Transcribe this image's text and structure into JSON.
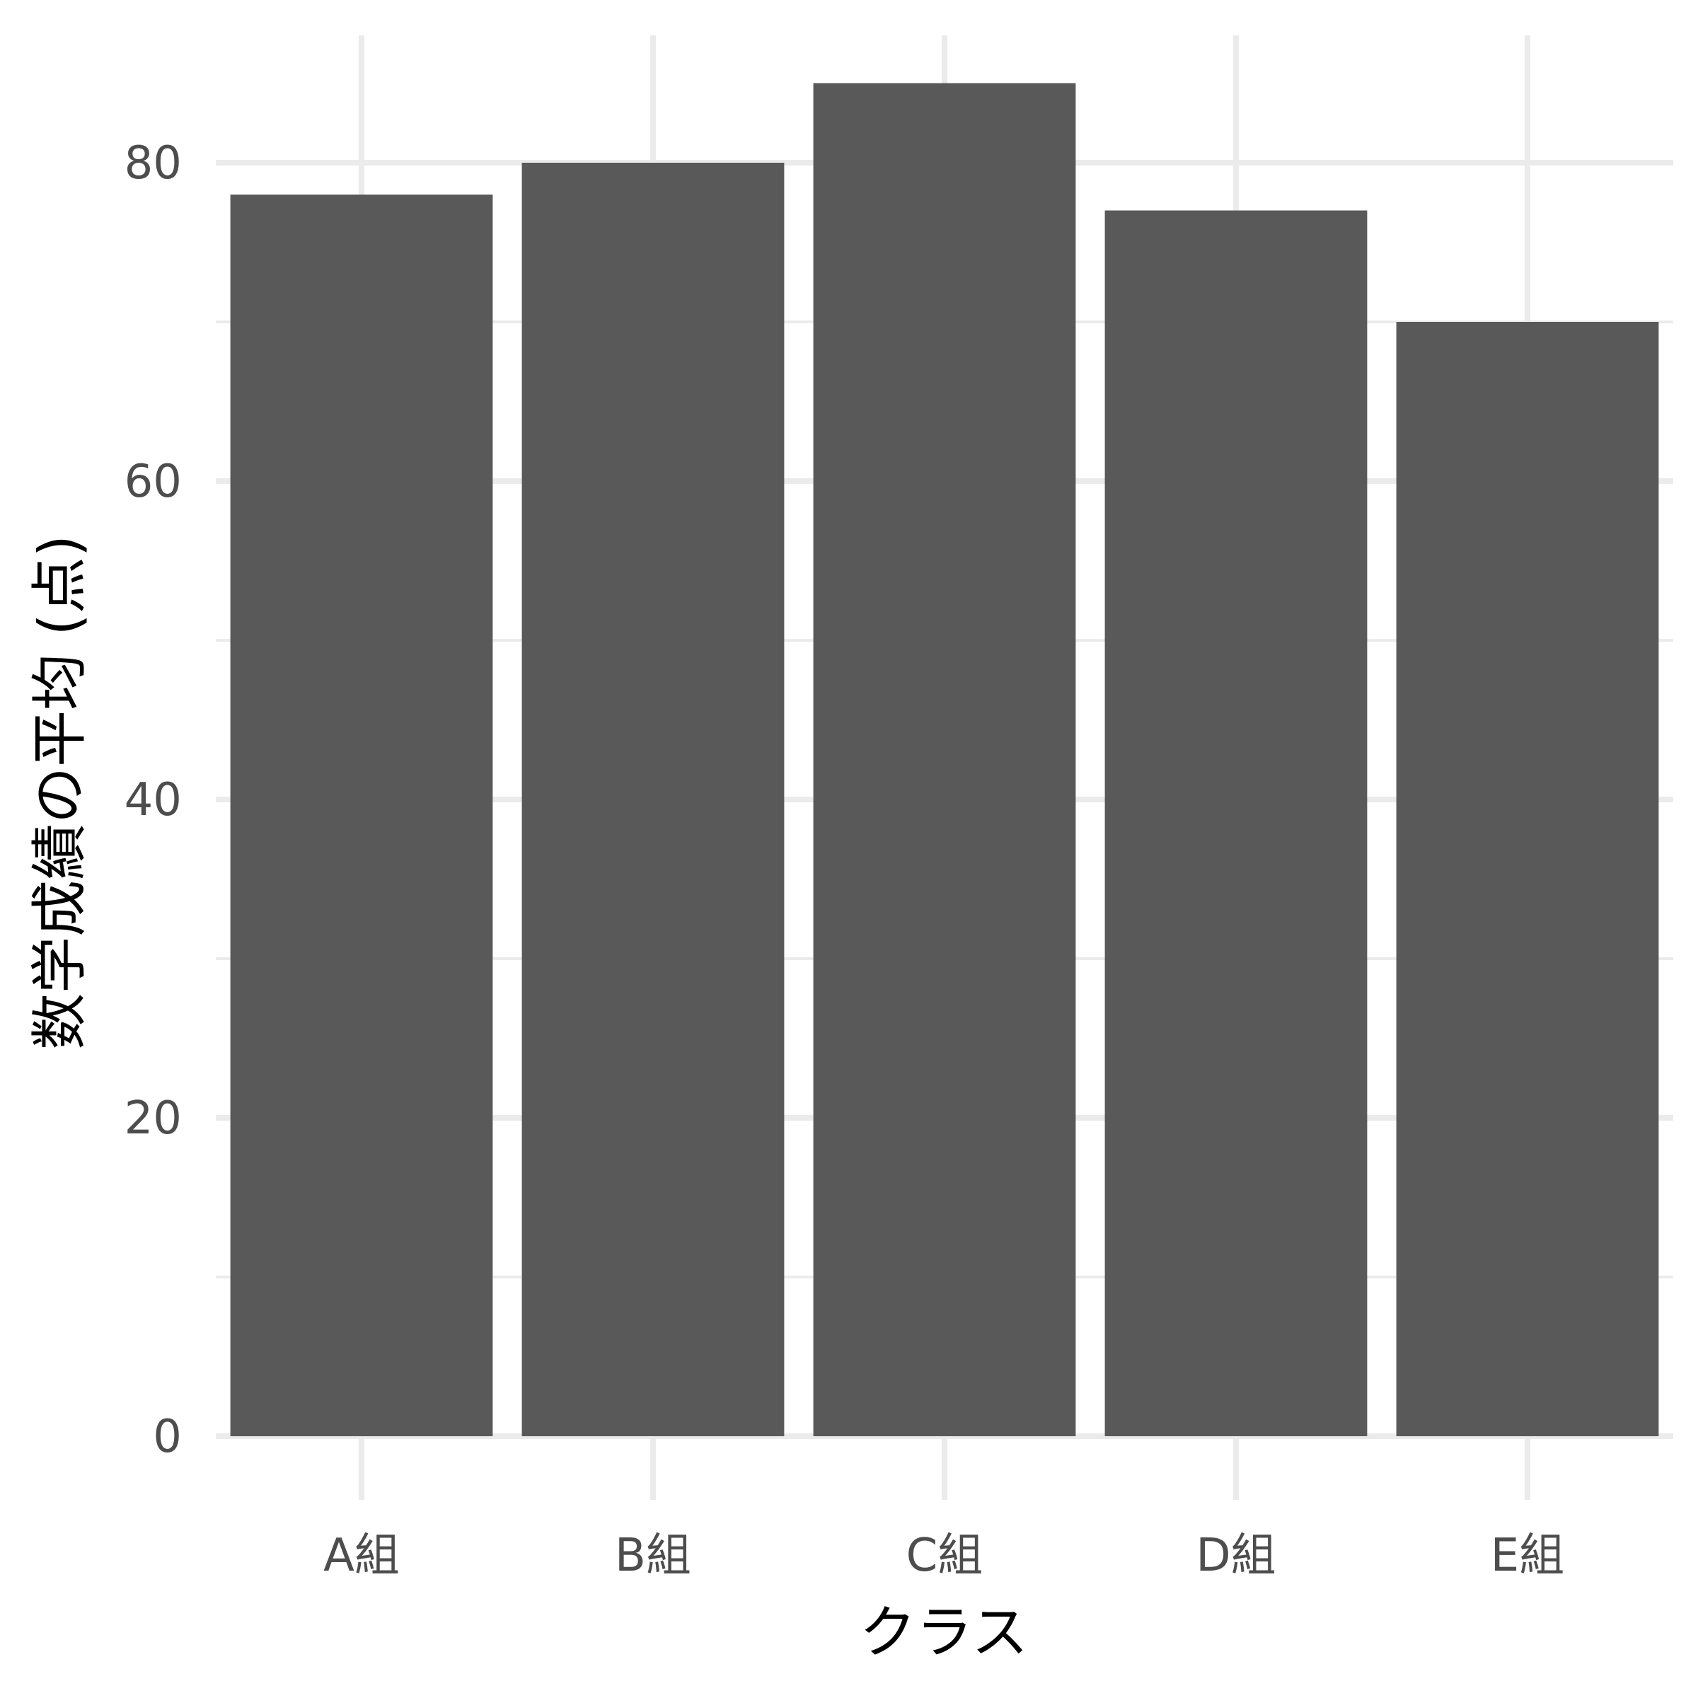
{
  "chart_data": {
    "type": "bar",
    "title": "",
    "xlabel": "クラス",
    "ylabel": "数学成績の平均 (点)",
    "categories": [
      "A組",
      "B組",
      "C組",
      "D組",
      "E組"
    ],
    "values": [
      78,
      80,
      85,
      77,
      70
    ],
    "ylim": [
      0,
      88
    ],
    "y_ticks": [
      0,
      20,
      40,
      60,
      80
    ],
    "y_tick_labels": [
      "0",
      "20",
      "40",
      "60",
      "80"
    ],
    "y_minor_ticks": [
      10,
      30,
      50,
      70
    ],
    "grid": true,
    "legend": "none",
    "bar_color": "#595959",
    "grid_color": "#ebebeb",
    "tick_label_color": "#4d4d4d",
    "axis_title_color": "#000000"
  }
}
